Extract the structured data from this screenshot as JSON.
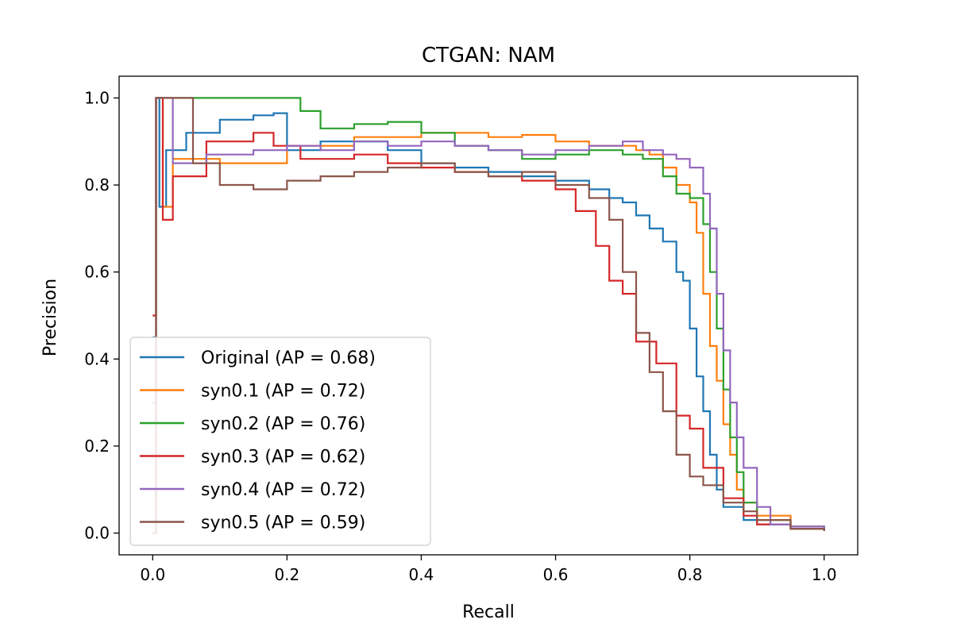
{
  "chart_data": {
    "type": "line",
    "title": "CTGAN: NAM",
    "xlabel": "Recall",
    "ylabel": "Precision",
    "xlim": [
      -0.05,
      1.05
    ],
    "ylim": [
      -0.05,
      1.05
    ],
    "xticks": [
      0.0,
      0.2,
      0.4,
      0.6,
      0.8,
      1.0
    ],
    "yticks": [
      0.0,
      0.2,
      0.4,
      0.6,
      0.8,
      1.0
    ],
    "xtick_labels": [
      "0.0",
      "0.2",
      "0.4",
      "0.6",
      "0.8",
      "1.0"
    ],
    "ytick_labels": [
      "0.0",
      "0.2",
      "0.4",
      "0.6",
      "0.8",
      "1.0"
    ],
    "legend_position": "lower-left",
    "series": [
      {
        "name": "Original (AP = 0.68)",
        "color": "#1f77b4",
        "points": [
          [
            0,
            0.45
          ],
          [
            0.005,
            1.0
          ],
          [
            0.01,
            0.75
          ],
          [
            0.02,
            0.88
          ],
          [
            0.05,
            0.92
          ],
          [
            0.1,
            0.95
          ],
          [
            0.15,
            0.96
          ],
          [
            0.18,
            0.965
          ],
          [
            0.2,
            0.88
          ],
          [
            0.25,
            0.9
          ],
          [
            0.3,
            0.9
          ],
          [
            0.35,
            0.88
          ],
          [
            0.4,
            0.85
          ],
          [
            0.45,
            0.84
          ],
          [
            0.5,
            0.83
          ],
          [
            0.55,
            0.82
          ],
          [
            0.6,
            0.81
          ],
          [
            0.65,
            0.79
          ],
          [
            0.68,
            0.77
          ],
          [
            0.7,
            0.76
          ],
          [
            0.72,
            0.73
          ],
          [
            0.74,
            0.7
          ],
          [
            0.76,
            0.67
          ],
          [
            0.78,
            0.6
          ],
          [
            0.79,
            0.58
          ],
          [
            0.8,
            0.47
          ],
          [
            0.81,
            0.36
          ],
          [
            0.82,
            0.28
          ],
          [
            0.83,
            0.18
          ],
          [
            0.84,
            0.1
          ],
          [
            0.85,
            0.06
          ],
          [
            0.88,
            0.03
          ],
          [
            0.9,
            0.02
          ],
          [
            0.95,
            0.01
          ],
          [
            1.0,
            0.005
          ]
        ]
      },
      {
        "name": "syn0.1 (AP = 0.72)",
        "color": "#ff7f0e",
        "points": [
          [
            0,
            0.0
          ],
          [
            0.005,
            1.0
          ],
          [
            0.015,
            0.75
          ],
          [
            0.03,
            0.86
          ],
          [
            0.1,
            0.85
          ],
          [
            0.2,
            0.89
          ],
          [
            0.3,
            0.91
          ],
          [
            0.4,
            0.92
          ],
          [
            0.5,
            0.91
          ],
          [
            0.55,
            0.915
          ],
          [
            0.6,
            0.9
          ],
          [
            0.65,
            0.89
          ],
          [
            0.7,
            0.89
          ],
          [
            0.72,
            0.88
          ],
          [
            0.74,
            0.87
          ],
          [
            0.76,
            0.84
          ],
          [
            0.78,
            0.8
          ],
          [
            0.8,
            0.76
          ],
          [
            0.81,
            0.69
          ],
          [
            0.82,
            0.55
          ],
          [
            0.83,
            0.43
          ],
          [
            0.84,
            0.35
          ],
          [
            0.85,
            0.25
          ],
          [
            0.86,
            0.18
          ],
          [
            0.87,
            0.1
          ],
          [
            0.88,
            0.07
          ],
          [
            0.9,
            0.04
          ],
          [
            0.95,
            0.015
          ],
          [
            1.0,
            0.005
          ]
        ]
      },
      {
        "name": "syn0.2 (AP = 0.76)",
        "color": "#2ca02c",
        "points": [
          [
            0,
            0.5
          ],
          [
            0.005,
            1.0
          ],
          [
            0.1,
            1.0
          ],
          [
            0.18,
            1.0
          ],
          [
            0.22,
            0.97
          ],
          [
            0.25,
            0.93
          ],
          [
            0.3,
            0.94
          ],
          [
            0.35,
            0.945
          ],
          [
            0.4,
            0.92
          ],
          [
            0.45,
            0.89
          ],
          [
            0.5,
            0.88
          ],
          [
            0.55,
            0.86
          ],
          [
            0.6,
            0.87
          ],
          [
            0.65,
            0.88
          ],
          [
            0.7,
            0.87
          ],
          [
            0.73,
            0.86
          ],
          [
            0.76,
            0.82
          ],
          [
            0.78,
            0.78
          ],
          [
            0.8,
            0.77
          ],
          [
            0.82,
            0.71
          ],
          [
            0.83,
            0.6
          ],
          [
            0.84,
            0.47
          ],
          [
            0.85,
            0.33
          ],
          [
            0.86,
            0.22
          ],
          [
            0.87,
            0.14
          ],
          [
            0.88,
            0.07
          ],
          [
            0.9,
            0.03
          ],
          [
            0.95,
            0.015
          ],
          [
            1.0,
            0.005
          ]
        ]
      },
      {
        "name": "syn0.3 (AP = 0.62)",
        "color": "#d62728",
        "points": [
          [
            0,
            0.5
          ],
          [
            0.005,
            1.0
          ],
          [
            0.015,
            0.72
          ],
          [
            0.03,
            0.82
          ],
          [
            0.08,
            0.9
          ],
          [
            0.15,
            0.92
          ],
          [
            0.18,
            0.89
          ],
          [
            0.22,
            0.86
          ],
          [
            0.3,
            0.87
          ],
          [
            0.35,
            0.85
          ],
          [
            0.4,
            0.84
          ],
          [
            0.45,
            0.83
          ],
          [
            0.5,
            0.82
          ],
          [
            0.55,
            0.81
          ],
          [
            0.6,
            0.79
          ],
          [
            0.63,
            0.74
          ],
          [
            0.66,
            0.66
          ],
          [
            0.68,
            0.58
          ],
          [
            0.7,
            0.55
          ],
          [
            0.72,
            0.44
          ],
          [
            0.75,
            0.39
          ],
          [
            0.78,
            0.27
          ],
          [
            0.8,
            0.24
          ],
          [
            0.82,
            0.15
          ],
          [
            0.85,
            0.08
          ],
          [
            0.88,
            0.04
          ],
          [
            0.9,
            0.02
          ],
          [
            0.95,
            0.01
          ],
          [
            1.0,
            0.005
          ]
        ]
      },
      {
        "name": "syn0.4 (AP = 0.72)",
        "color": "#9467bd",
        "points": [
          [
            0,
            0.3
          ],
          [
            0.005,
            1.0
          ],
          [
            0.03,
            0.85
          ],
          [
            0.08,
            0.87
          ],
          [
            0.15,
            0.88
          ],
          [
            0.2,
            0.89
          ],
          [
            0.25,
            0.88
          ],
          [
            0.3,
            0.9
          ],
          [
            0.35,
            0.89
          ],
          [
            0.4,
            0.9
          ],
          [
            0.45,
            0.89
          ],
          [
            0.5,
            0.88
          ],
          [
            0.55,
            0.87
          ],
          [
            0.6,
            0.88
          ],
          [
            0.65,
            0.89
          ],
          [
            0.7,
            0.9
          ],
          [
            0.73,
            0.88
          ],
          [
            0.76,
            0.87
          ],
          [
            0.78,
            0.86
          ],
          [
            0.8,
            0.84
          ],
          [
            0.82,
            0.78
          ],
          [
            0.83,
            0.7
          ],
          [
            0.84,
            0.55
          ],
          [
            0.85,
            0.42
          ],
          [
            0.86,
            0.3
          ],
          [
            0.87,
            0.22
          ],
          [
            0.88,
            0.15
          ],
          [
            0.9,
            0.06
          ],
          [
            0.92,
            0.02
          ],
          [
            0.95,
            0.015
          ],
          [
            1.0,
            0.005
          ]
        ]
      },
      {
        "name": "syn0.5 (AP = 0.59)",
        "color": "#8c564b",
        "points": [
          [
            0,
            0.0
          ],
          [
            0.005,
            1.0
          ],
          [
            0.055,
            1.0
          ],
          [
            0.06,
            0.85
          ],
          [
            0.1,
            0.8
          ],
          [
            0.15,
            0.79
          ],
          [
            0.2,
            0.81
          ],
          [
            0.25,
            0.82
          ],
          [
            0.3,
            0.83
          ],
          [
            0.35,
            0.84
          ],
          [
            0.4,
            0.85
          ],
          [
            0.45,
            0.83
          ],
          [
            0.5,
            0.82
          ],
          [
            0.55,
            0.83
          ],
          [
            0.6,
            0.8
          ],
          [
            0.65,
            0.77
          ],
          [
            0.68,
            0.72
          ],
          [
            0.7,
            0.6
          ],
          [
            0.72,
            0.46
          ],
          [
            0.74,
            0.37
          ],
          [
            0.76,
            0.28
          ],
          [
            0.78,
            0.18
          ],
          [
            0.8,
            0.13
          ],
          [
            0.82,
            0.11
          ],
          [
            0.85,
            0.07
          ],
          [
            0.88,
            0.05
          ],
          [
            0.9,
            0.03
          ],
          [
            0.95,
            0.01
          ],
          [
            1.0,
            0.005
          ]
        ]
      }
    ]
  }
}
